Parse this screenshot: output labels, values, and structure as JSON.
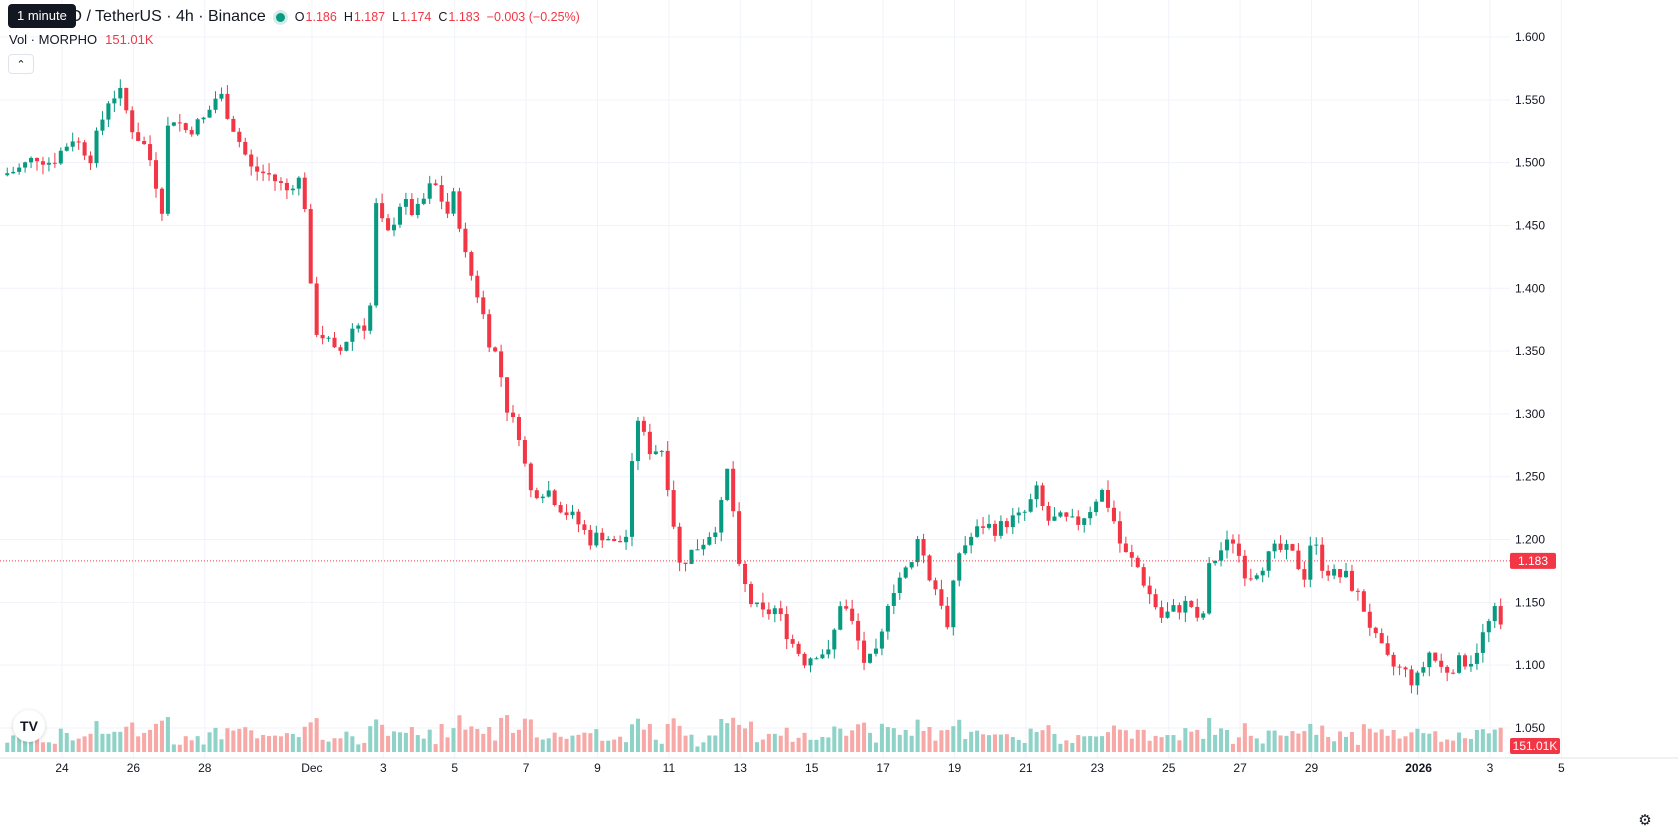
{
  "header": {
    "symbol": "HO / TetherUS · 4h · Binance",
    "ohlc": {
      "open_label": "O",
      "open": "1.186",
      "high_label": "H",
      "high": "1.187",
      "low_label": "L",
      "low": "1.174",
      "close_label": "C",
      "close": "1.183",
      "change": "−0.003 (−0.25%)"
    },
    "tooltip": "1 minute",
    "volume_label": "Vol · MORPHO",
    "volume_value": "151.01K",
    "collapse_icon": "chevron-up-icon",
    "logo_text": "TV"
  },
  "colors": {
    "up": "#089981",
    "down": "#f23645",
    "up_volume": "#8fd3c8",
    "down_volume": "#f7a9a7",
    "grid": "#f0f3fa",
    "text": "#131722"
  },
  "chart_data": {
    "type": "candlestick",
    "last_price": "1.183",
    "last_price_value": 1.183,
    "y_ticks": [
      "1.600",
      "1.550",
      "1.500",
      "1.450",
      "1.400",
      "1.350",
      "1.300",
      "1.250",
      "1.200",
      "1.150",
      "1.100",
      "1.050"
    ],
    "ylim": [
      1.05,
      1.6
    ],
    "x_ticks": [
      {
        "label": "24",
        "day": 0
      },
      {
        "label": "26",
        "day": 2
      },
      {
        "label": "28",
        "day": 4
      },
      {
        "label": "Dec",
        "day": 7
      },
      {
        "label": "3",
        "day": 9
      },
      {
        "label": "5",
        "day": 11
      },
      {
        "label": "7",
        "day": 13
      },
      {
        "label": "9",
        "day": 15
      },
      {
        "label": "11",
        "day": 17
      },
      {
        "label": "13",
        "day": 19
      },
      {
        "label": "15",
        "day": 21
      },
      {
        "label": "17",
        "day": 23
      },
      {
        "label": "19",
        "day": 25
      },
      {
        "label": "21",
        "day": 27
      },
      {
        "label": "23",
        "day": 29
      },
      {
        "label": "25",
        "day": 31
      },
      {
        "label": "27",
        "day": 33
      },
      {
        "label": "29",
        "day": 35
      },
      {
        "label": "2026",
        "day": 38,
        "bold": true
      },
      {
        "label": "3",
        "day": 40
      },
      {
        "label": "5",
        "day": 42
      }
    ],
    "volume_badge": "151.01K",
    "grid": true,
    "close_path": [
      {
        "d": -1.7,
        "c": 1.49
      },
      {
        "d": -1.2,
        "c": 1.495
      },
      {
        "d": -0.7,
        "c": 1.505
      },
      {
        "d": -0.3,
        "c": 1.5
      },
      {
        "d": 0.3,
        "c": 1.52
      },
      {
        "d": 0.8,
        "c": 1.505
      },
      {
        "d": 1.3,
        "c": 1.55
      },
      {
        "d": 1.6,
        "c": 1.557
      },
      {
        "d": 2.0,
        "c": 1.525
      },
      {
        "d": 2.4,
        "c": 1.51
      },
      {
        "d": 2.8,
        "c": 1.465
      },
      {
        "d": 3.0,
        "c": 1.54
      },
      {
        "d": 3.5,
        "c": 1.525
      },
      {
        "d": 4.0,
        "c": 1.535
      },
      {
        "d": 4.4,
        "c": 1.557
      },
      {
        "d": 4.7,
        "c": 1.535
      },
      {
        "d": 5.3,
        "c": 1.495
      },
      {
        "d": 5.8,
        "c": 1.49
      },
      {
        "d": 6.3,
        "c": 1.478
      },
      {
        "d": 6.6,
        "c": 1.49
      },
      {
        "d": 6.9,
        "c": 1.455
      },
      {
        "d": 7.0,
        "c": 1.37
      },
      {
        "d": 7.4,
        "c": 1.36
      },
      {
        "d": 7.7,
        "c": 1.345
      },
      {
        "d": 8.2,
        "c": 1.372
      },
      {
        "d": 8.6,
        "c": 1.37
      },
      {
        "d": 8.8,
        "c": 1.465
      },
      {
        "d": 9.1,
        "c": 1.44
      },
      {
        "d": 9.5,
        "c": 1.47
      },
      {
        "d": 9.9,
        "c": 1.458
      },
      {
        "d": 10.4,
        "c": 1.485
      },
      {
        "d": 10.8,
        "c": 1.46
      },
      {
        "d": 11.0,
        "c": 1.475
      },
      {
        "d": 11.3,
        "c": 1.425
      },
      {
        "d": 11.7,
        "c": 1.39
      },
      {
        "d": 12.0,
        "c": 1.355
      },
      {
        "d": 12.2,
        "c": 1.345
      },
      {
        "d": 12.5,
        "c": 1.3
      },
      {
        "d": 12.8,
        "c": 1.285
      },
      {
        "d": 13.1,
        "c": 1.238
      },
      {
        "d": 13.6,
        "c": 1.24
      },
      {
        "d": 14.0,
        "c": 1.225
      },
      {
        "d": 14.4,
        "c": 1.215
      },
      {
        "d": 14.8,
        "c": 1.2
      },
      {
        "d": 15.2,
        "c": 1.205
      },
      {
        "d": 15.5,
        "c": 1.195
      },
      {
        "d": 15.8,
        "c": 1.203
      },
      {
        "d": 16.1,
        "c": 1.3
      },
      {
        "d": 16.4,
        "c": 1.272
      },
      {
        "d": 16.8,
        "c": 1.272
      },
      {
        "d": 17.0,
        "c": 1.24
      },
      {
        "d": 17.3,
        "c": 1.18
      },
      {
        "d": 17.7,
        "c": 1.192
      },
      {
        "d": 18.0,
        "c": 1.2
      },
      {
        "d": 18.4,
        "c": 1.215
      },
      {
        "d": 18.7,
        "c": 1.265
      },
      {
        "d": 18.9,
        "c": 1.18
      },
      {
        "d": 19.3,
        "c": 1.15
      },
      {
        "d": 19.6,
        "c": 1.14
      },
      {
        "d": 20.0,
        "c": 1.145
      },
      {
        "d": 20.4,
        "c": 1.12
      },
      {
        "d": 20.8,
        "c": 1.104
      },
      {
        "d": 21.2,
        "c": 1.112
      },
      {
        "d": 21.5,
        "c": 1.108
      },
      {
        "d": 21.8,
        "c": 1.15
      },
      {
        "d": 22.0,
        "c": 1.142
      },
      {
        "d": 22.2,
        "c": 1.128
      },
      {
        "d": 22.5,
        "c": 1.1
      },
      {
        "d": 22.9,
        "c": 1.11
      },
      {
        "d": 23.1,
        "c": 1.15
      },
      {
        "d": 23.4,
        "c": 1.168
      },
      {
        "d": 23.8,
        "c": 1.18
      },
      {
        "d": 24.0,
        "c": 1.21
      },
      {
        "d": 24.2,
        "c": 1.175
      },
      {
        "d": 24.6,
        "c": 1.155
      },
      {
        "d": 24.9,
        "c": 1.115
      },
      {
        "d": 25.0,
        "c": 1.185
      },
      {
        "d": 25.4,
        "c": 1.2
      },
      {
        "d": 25.8,
        "c": 1.212
      },
      {
        "d": 26.2,
        "c": 1.208
      },
      {
        "d": 26.5,
        "c": 1.215
      },
      {
        "d": 26.9,
        "c": 1.218
      },
      {
        "d": 27.3,
        "c": 1.238
      },
      {
        "d": 27.6,
        "c": 1.215
      },
      {
        "d": 28.0,
        "c": 1.216
      },
      {
        "d": 28.4,
        "c": 1.212
      },
      {
        "d": 28.8,
        "c": 1.225
      },
      {
        "d": 29.1,
        "c": 1.24
      },
      {
        "d": 29.4,
        "c": 1.222
      },
      {
        "d": 29.7,
        "c": 1.19
      },
      {
        "d": 30.1,
        "c": 1.18
      },
      {
        "d": 30.4,
        "c": 1.16
      },
      {
        "d": 30.8,
        "c": 1.138
      },
      {
        "d": 31.2,
        "c": 1.145
      },
      {
        "d": 31.6,
        "c": 1.15
      },
      {
        "d": 31.9,
        "c": 1.125
      },
      {
        "d": 32.1,
        "c": 1.175
      },
      {
        "d": 32.4,
        "c": 1.19
      },
      {
        "d": 32.8,
        "c": 1.2
      },
      {
        "d": 33.2,
        "c": 1.17
      },
      {
        "d": 33.6,
        "c": 1.18
      },
      {
        "d": 34.0,
        "c": 1.192
      },
      {
        "d": 34.4,
        "c": 1.19
      },
      {
        "d": 34.8,
        "c": 1.172
      },
      {
        "d": 35.0,
        "c": 1.202
      },
      {
        "d": 35.3,
        "c": 1.18
      },
      {
        "d": 35.6,
        "c": 1.172
      },
      {
        "d": 36.0,
        "c": 1.17
      },
      {
        "d": 36.4,
        "c": 1.15
      },
      {
        "d": 36.8,
        "c": 1.12
      },
      {
        "d": 37.2,
        "c": 1.1
      },
      {
        "d": 37.6,
        "c": 1.095
      },
      {
        "d": 37.9,
        "c": 1.085
      },
      {
        "d": 38.3,
        "c": 1.11
      },
      {
        "d": 38.7,
        "c": 1.095
      },
      {
        "d": 39.1,
        "c": 1.102
      },
      {
        "d": 39.5,
        "c": 1.105
      },
      {
        "d": 39.9,
        "c": 1.13
      },
      {
        "d": 40.2,
        "c": 1.145
      },
      {
        "d": 40.4,
        "c": 1.115
      },
      {
        "d": 40.7,
        "c": 1.125
      },
      {
        "d": 41.0,
        "c": 1.145
      },
      {
        "d": 41.1,
        "c": 1.185
      },
      {
        "d": 41.4,
        "c": 1.188
      },
      {
        "d": 41.6,
        "c": 1.183
      }
    ]
  }
}
